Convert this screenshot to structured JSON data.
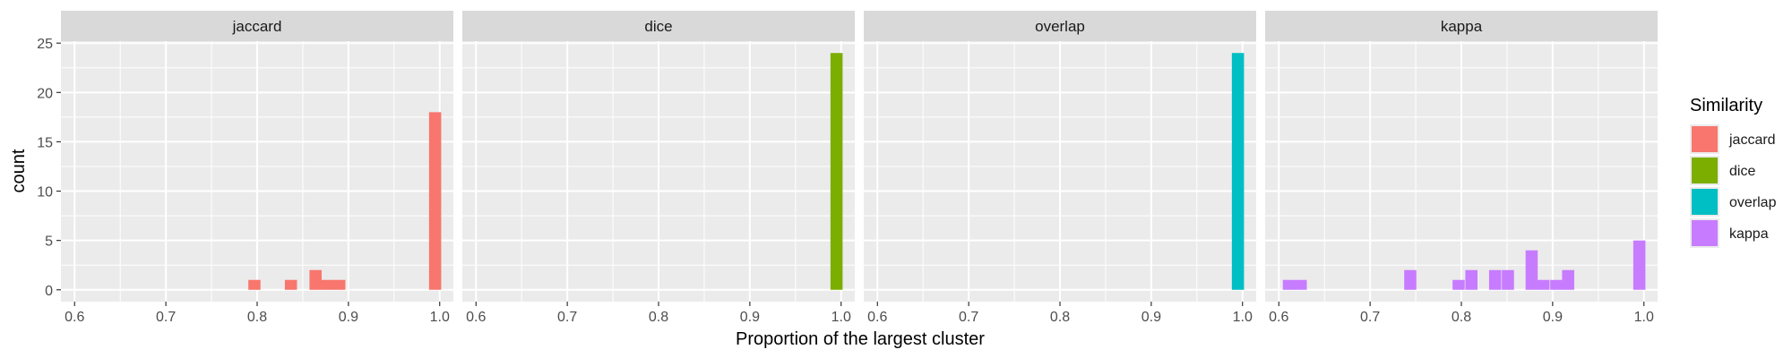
{
  "chart_data": {
    "type": "bar",
    "subtype": "faceted-histogram",
    "xlabel": "Proportion of the largest cluster",
    "ylabel": "count",
    "xlim": [
      0.585,
      1.015
    ],
    "ylim": [
      -1.2,
      25.2
    ],
    "x_ticks": [
      "0.6",
      "0.7",
      "0.8",
      "0.9",
      "1.0"
    ],
    "y_ticks": [
      "0",
      "5",
      "10",
      "15",
      "20",
      "25"
    ],
    "bin_width": 0.0133,
    "grid": true,
    "legend": {
      "title": "Similarity",
      "position": "right",
      "entries": [
        "jaccard",
        "dice",
        "overlap",
        "kappa"
      ]
    },
    "facets": [
      {
        "name": "jaccard",
        "color": "#F8766D",
        "bins": [
          {
            "x": 0.797,
            "count": 1
          },
          {
            "x": 0.837,
            "count": 1
          },
          {
            "x": 0.864,
            "count": 2
          },
          {
            "x": 0.877,
            "count": 1
          },
          {
            "x": 0.89,
            "count": 1
          },
          {
            "x": 0.995,
            "count": 18
          }
        ]
      },
      {
        "name": "dice",
        "color": "#7CAE00",
        "bins": [
          {
            "x": 0.995,
            "count": 24
          }
        ]
      },
      {
        "name": "overlap",
        "color": "#00BFC4",
        "bins": [
          {
            "x": 0.995,
            "count": 24
          }
        ]
      },
      {
        "name": "kappa",
        "color": "#C77CFF",
        "bins": [
          {
            "x": 0.611,
            "count": 1
          },
          {
            "x": 0.624,
            "count": 1
          },
          {
            "x": 0.744,
            "count": 2
          },
          {
            "x": 0.797,
            "count": 1
          },
          {
            "x": 0.811,
            "count": 2
          },
          {
            "x": 0.837,
            "count": 2
          },
          {
            "x": 0.851,
            "count": 2
          },
          {
            "x": 0.877,
            "count": 4
          },
          {
            "x": 0.89,
            "count": 1
          },
          {
            "x": 0.904,
            "count": 1
          },
          {
            "x": 0.917,
            "count": 2
          },
          {
            "x": 0.995,
            "count": 5
          }
        ]
      }
    ]
  }
}
